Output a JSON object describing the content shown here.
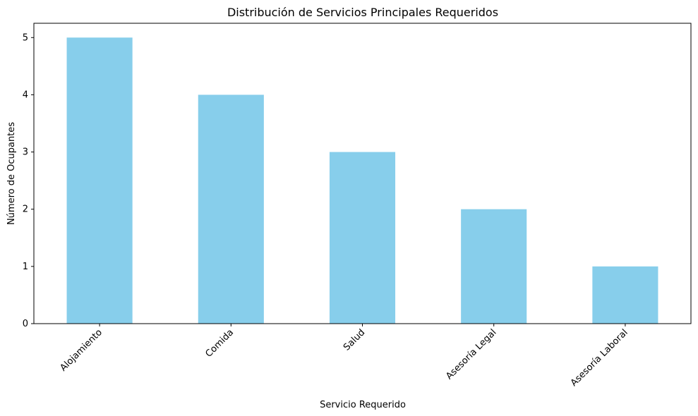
{
  "chart_data": {
    "type": "bar",
    "title": "Distribución de Servicios Principales Requeridos",
    "xlabel": "Servicio Requerido",
    "ylabel": "Número de Ocupantes",
    "categories": [
      "Alojamiento",
      "Comida",
      "Salud",
      "Asesoría Legal",
      "Asesoría Laboral"
    ],
    "values": [
      5,
      4,
      3,
      2,
      1
    ],
    "ylim": [
      0,
      5.25
    ],
    "yticks": [
      "0",
      "1",
      "2",
      "3",
      "4",
      "5"
    ],
    "bar_color": "#87CEEB",
    "grid": false,
    "legend": "none"
  }
}
